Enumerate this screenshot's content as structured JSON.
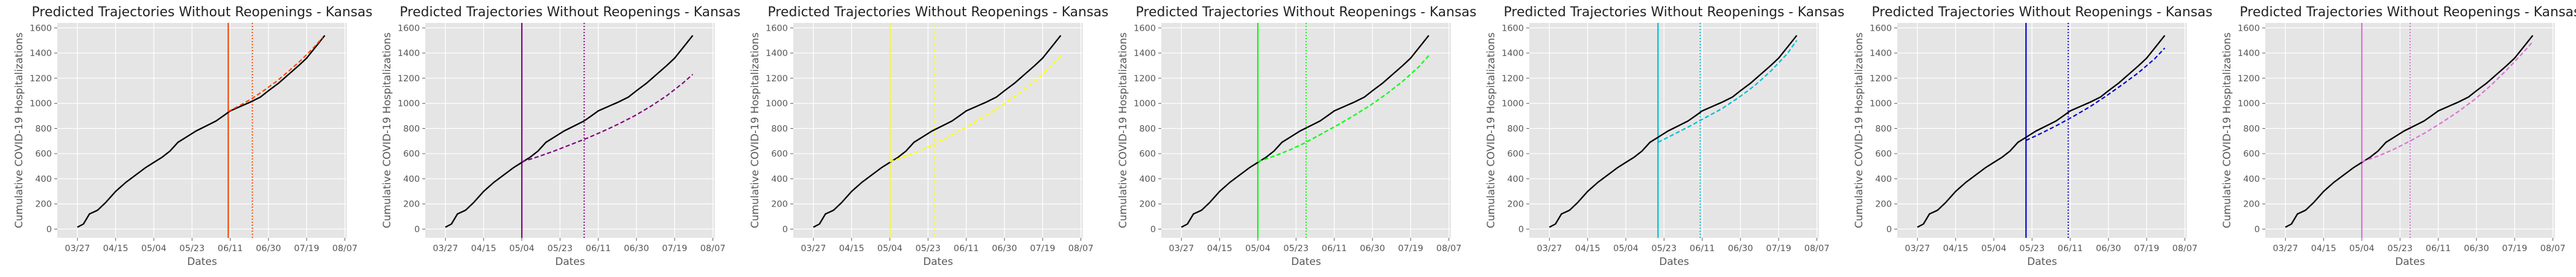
{
  "figure": {
    "xlabel": "Dates",
    "ylabel": "Cumulative COVID-19 Hospitalizations",
    "x_tick_labels": [
      "03/27",
      "04/15",
      "05/04",
      "05/23",
      "06/11",
      "06/30",
      "07/19",
      "08/07"
    ],
    "x_tick_dates": [
      "2020-03-27",
      "2020-04-15",
      "2020-05-04",
      "2020-05-23",
      "2020-06-11",
      "2020-06-30",
      "2020-07-19",
      "2020-08-07"
    ],
    "y_ticks": [
      0,
      200,
      400,
      600,
      800,
      1000,
      1200,
      1400,
      1600
    ],
    "xlim": [
      "2020-03-17",
      "2020-08-08"
    ],
    "ylim": [
      -70,
      1640
    ],
    "grid": true,
    "style": "ggplot",
    "observed_color": "#000000"
  },
  "chart_data": [
    {
      "type": "line",
      "title": "Predicted Trajectories Without Reopenings - Kansas",
      "color": "#ff4500",
      "x": [
        "2020-03-27",
        "2020-03-30",
        "2020-04-02",
        "2020-04-06",
        "2020-04-10",
        "2020-04-15",
        "2020-04-20",
        "2020-04-25",
        "2020-04-30",
        "2020-05-04",
        "2020-05-08",
        "2020-05-12",
        "2020-05-16",
        "2020-05-20",
        "2020-05-25",
        "2020-05-30",
        "2020-06-04",
        "2020-06-08",
        "2020-06-11",
        "2020-06-16",
        "2020-06-21",
        "2020-06-26",
        "2020-06-30",
        "2020-07-05",
        "2020-07-10",
        "2020-07-15",
        "2020-07-19",
        "2020-07-24",
        "2020-07-28"
      ],
      "observed": [
        15,
        40,
        120,
        150,
        210,
        300,
        370,
        430,
        490,
        530,
        570,
        620,
        690,
        730,
        780,
        820,
        860,
        905,
        940,
        975,
        1010,
        1050,
        1100,
        1160,
        1230,
        1300,
        1360,
        1460,
        1540
      ],
      "vlines": [
        {
          "date": "2020-06-10",
          "style": "solid"
        },
        {
          "date": "2020-06-22",
          "style": "dotted"
        }
      ],
      "prediction": {
        "x": [
          "2020-06-10",
          "2020-06-16",
          "2020-06-22",
          "2020-06-28",
          "2020-07-04",
          "2020-07-10",
          "2020-07-16",
          "2020-07-22",
          "2020-07-27"
        ],
        "y": [
          935,
          985,
          1040,
          1105,
          1175,
          1255,
          1340,
          1435,
          1525
        ]
      }
    },
    {
      "type": "line",
      "title": "Predicted Trajectories Without Reopenings - Kansas",
      "color": "#800080",
      "x": [
        "2020-03-27",
        "2020-03-30",
        "2020-04-02",
        "2020-04-06",
        "2020-04-10",
        "2020-04-15",
        "2020-04-20",
        "2020-04-25",
        "2020-04-30",
        "2020-05-04",
        "2020-05-08",
        "2020-05-12",
        "2020-05-16",
        "2020-05-20",
        "2020-05-25",
        "2020-05-30",
        "2020-06-04",
        "2020-06-08",
        "2020-06-11",
        "2020-06-16",
        "2020-06-21",
        "2020-06-26",
        "2020-06-30",
        "2020-07-05",
        "2020-07-10",
        "2020-07-15",
        "2020-07-19",
        "2020-07-24",
        "2020-07-28"
      ],
      "observed": [
        15,
        40,
        120,
        150,
        210,
        300,
        370,
        430,
        490,
        530,
        570,
        620,
        690,
        730,
        780,
        820,
        860,
        905,
        940,
        975,
        1010,
        1050,
        1100,
        1160,
        1230,
        1300,
        1360,
        1460,
        1540
      ],
      "vlines": [
        {
          "date": "2020-05-04",
          "style": "solid"
        },
        {
          "date": "2020-06-04",
          "style": "dotted"
        }
      ],
      "prediction": {
        "x": [
          "2020-05-04",
          "2020-05-12",
          "2020-05-20",
          "2020-05-28",
          "2020-06-05",
          "2020-06-13",
          "2020-06-21",
          "2020-06-29",
          "2020-07-07",
          "2020-07-15",
          "2020-07-23",
          "2020-07-28"
        ],
        "y": [
          535,
          575,
          620,
          670,
          720,
          775,
          835,
          900,
          975,
          1060,
          1160,
          1230
        ]
      }
    },
    {
      "type": "line",
      "title": "Predicted Trajectories Without Reopenings - Kansas",
      "color": "#ffff00",
      "x": [
        "2020-03-27",
        "2020-03-30",
        "2020-04-02",
        "2020-04-06",
        "2020-04-10",
        "2020-04-15",
        "2020-04-20",
        "2020-04-25",
        "2020-04-30",
        "2020-05-04",
        "2020-05-08",
        "2020-05-12",
        "2020-05-16",
        "2020-05-20",
        "2020-05-25",
        "2020-05-30",
        "2020-06-04",
        "2020-06-08",
        "2020-06-11",
        "2020-06-16",
        "2020-06-21",
        "2020-06-26",
        "2020-06-30",
        "2020-07-05",
        "2020-07-10",
        "2020-07-15",
        "2020-07-19",
        "2020-07-24",
        "2020-07-28"
      ],
      "observed": [
        15,
        40,
        120,
        150,
        210,
        300,
        370,
        430,
        490,
        530,
        570,
        620,
        690,
        730,
        780,
        820,
        860,
        905,
        940,
        975,
        1010,
        1050,
        1100,
        1160,
        1230,
        1300,
        1360,
        1460,
        1540
      ],
      "vlines": [
        {
          "date": "2020-05-04",
          "style": "solid"
        },
        {
          "date": "2020-05-26",
          "style": "dotted"
        }
      ],
      "prediction": {
        "x": [
          "2020-05-04",
          "2020-05-12",
          "2020-05-20",
          "2020-05-28",
          "2020-06-05",
          "2020-06-13",
          "2020-06-21",
          "2020-06-29",
          "2020-07-07",
          "2020-07-15",
          "2020-07-23",
          "2020-07-28"
        ],
        "y": [
          535,
          580,
          630,
          690,
          760,
          830,
          905,
          985,
          1075,
          1175,
          1290,
          1380
        ]
      }
    },
    {
      "type": "line",
      "title": "Predicted Trajectories Without Reopenings - Kansas",
      "color": "#00ff00",
      "x": [
        "2020-03-27",
        "2020-03-30",
        "2020-04-02",
        "2020-04-06",
        "2020-04-10",
        "2020-04-15",
        "2020-04-20",
        "2020-04-25",
        "2020-04-30",
        "2020-05-04",
        "2020-05-08",
        "2020-05-12",
        "2020-05-16",
        "2020-05-20",
        "2020-05-25",
        "2020-05-30",
        "2020-06-04",
        "2020-06-08",
        "2020-06-11",
        "2020-06-16",
        "2020-06-21",
        "2020-06-26",
        "2020-06-30",
        "2020-07-05",
        "2020-07-10",
        "2020-07-15",
        "2020-07-19",
        "2020-07-24",
        "2020-07-28"
      ],
      "observed": [
        15,
        40,
        120,
        150,
        210,
        300,
        370,
        430,
        490,
        530,
        570,
        620,
        690,
        730,
        780,
        820,
        860,
        905,
        940,
        975,
        1010,
        1050,
        1100,
        1160,
        1230,
        1300,
        1360,
        1460,
        1540
      ],
      "vlines": [
        {
          "date": "2020-05-04",
          "style": "solid"
        },
        {
          "date": "2020-05-28",
          "style": "dotted"
        }
      ],
      "prediction": {
        "x": [
          "2020-05-04",
          "2020-05-12",
          "2020-05-20",
          "2020-05-28",
          "2020-06-05",
          "2020-06-13",
          "2020-06-21",
          "2020-06-29",
          "2020-07-07",
          "2020-07-15",
          "2020-07-23",
          "2020-07-28"
        ],
        "y": [
          535,
          580,
          630,
          690,
          760,
          830,
          905,
          985,
          1075,
          1175,
          1290,
          1380
        ]
      }
    },
    {
      "type": "line",
      "title": "Predicted Trajectories Without Reopenings - Kansas",
      "color": "#00bcd4",
      "x": [
        "2020-03-27",
        "2020-03-30",
        "2020-04-02",
        "2020-04-06",
        "2020-04-10",
        "2020-04-15",
        "2020-04-20",
        "2020-04-25",
        "2020-04-30",
        "2020-05-04",
        "2020-05-08",
        "2020-05-12",
        "2020-05-16",
        "2020-05-20",
        "2020-05-25",
        "2020-05-30",
        "2020-06-04",
        "2020-06-08",
        "2020-06-11",
        "2020-06-16",
        "2020-06-21",
        "2020-06-26",
        "2020-06-30",
        "2020-07-05",
        "2020-07-10",
        "2020-07-15",
        "2020-07-19",
        "2020-07-24",
        "2020-07-28"
      ],
      "observed": [
        15,
        40,
        120,
        150,
        210,
        300,
        370,
        430,
        490,
        530,
        570,
        620,
        690,
        730,
        780,
        820,
        860,
        905,
        940,
        975,
        1010,
        1050,
        1100,
        1160,
        1230,
        1300,
        1360,
        1460,
        1540
      ],
      "vlines": [
        {
          "date": "2020-05-20",
          "style": "solid"
        },
        {
          "date": "2020-06-10",
          "style": "dotted"
        }
      ],
      "prediction": {
        "x": [
          "2020-05-20",
          "2020-05-28",
          "2020-06-05",
          "2020-06-13",
          "2020-06-21",
          "2020-06-29",
          "2020-07-07",
          "2020-07-15",
          "2020-07-23",
          "2020-07-28"
        ],
        "y": [
          690,
          755,
          820,
          890,
          960,
          1045,
          1140,
          1255,
          1390,
          1500
        ]
      }
    },
    {
      "type": "line",
      "title": "Predicted Trajectories Without Reopenings - Kansas",
      "color": "#0000cd",
      "x": [
        "2020-03-27",
        "2020-03-30",
        "2020-04-02",
        "2020-04-06",
        "2020-04-10",
        "2020-04-15",
        "2020-04-20",
        "2020-04-25",
        "2020-04-30",
        "2020-05-04",
        "2020-05-08",
        "2020-05-12",
        "2020-05-16",
        "2020-05-20",
        "2020-05-25",
        "2020-05-30",
        "2020-06-04",
        "2020-06-08",
        "2020-06-11",
        "2020-06-16",
        "2020-06-21",
        "2020-06-26",
        "2020-06-30",
        "2020-07-05",
        "2020-07-10",
        "2020-07-15",
        "2020-07-19",
        "2020-07-24",
        "2020-07-28"
      ],
      "observed": [
        15,
        40,
        120,
        150,
        210,
        300,
        370,
        430,
        490,
        530,
        570,
        620,
        690,
        730,
        780,
        820,
        860,
        905,
        940,
        975,
        1010,
        1050,
        1100,
        1160,
        1230,
        1300,
        1360,
        1460,
        1540
      ],
      "vlines": [
        {
          "date": "2020-05-20",
          "style": "solid"
        },
        {
          "date": "2020-06-10",
          "style": "dotted"
        }
      ],
      "prediction": {
        "x": [
          "2020-05-20",
          "2020-05-28",
          "2020-06-05",
          "2020-06-13",
          "2020-06-21",
          "2020-06-29",
          "2020-07-07",
          "2020-07-15",
          "2020-07-23",
          "2020-07-28"
        ],
        "y": [
          705,
          765,
          830,
          900,
          975,
          1060,
          1150,
          1245,
          1355,
          1440
        ]
      }
    },
    {
      "type": "line",
      "title": "Predicted Trajectories Without Reopenings - Kansas",
      "color": "#da70d6",
      "x": [
        "2020-03-27",
        "2020-03-30",
        "2020-04-02",
        "2020-04-06",
        "2020-04-10",
        "2020-04-15",
        "2020-04-20",
        "2020-04-25",
        "2020-04-30",
        "2020-05-04",
        "2020-05-08",
        "2020-05-12",
        "2020-05-16",
        "2020-05-20",
        "2020-05-25",
        "2020-05-30",
        "2020-06-04",
        "2020-06-08",
        "2020-06-11",
        "2020-06-16",
        "2020-06-21",
        "2020-06-26",
        "2020-06-30",
        "2020-07-05",
        "2020-07-10",
        "2020-07-15",
        "2020-07-19",
        "2020-07-24",
        "2020-07-28"
      ],
      "observed": [
        15,
        40,
        120,
        150,
        210,
        300,
        370,
        430,
        490,
        530,
        570,
        620,
        690,
        730,
        780,
        820,
        860,
        905,
        940,
        975,
        1010,
        1050,
        1100,
        1160,
        1230,
        1300,
        1360,
        1460,
        1540
      ],
      "vlines": [
        {
          "date": "2020-05-04",
          "style": "solid"
        },
        {
          "date": "2020-05-28",
          "style": "dotted"
        }
      ],
      "prediction": {
        "x": [
          "2020-05-04",
          "2020-05-12",
          "2020-05-20",
          "2020-05-28",
          "2020-06-05",
          "2020-06-13",
          "2020-06-21",
          "2020-06-29",
          "2020-07-07",
          "2020-07-15",
          "2020-07-23",
          "2020-07-28"
        ],
        "y": [
          535,
          580,
          635,
          700,
          770,
          850,
          935,
          1030,
          1140,
          1265,
          1400,
          1490
        ]
      }
    }
  ]
}
